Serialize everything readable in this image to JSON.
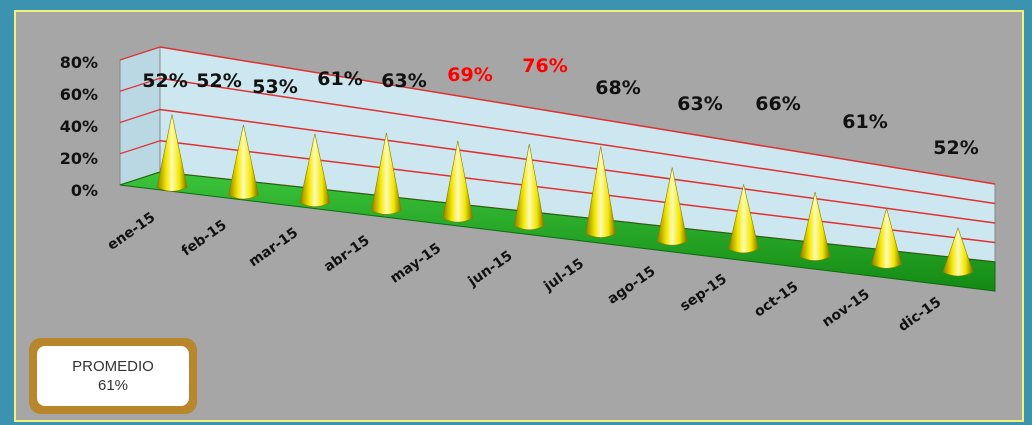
{
  "chart_data": {
    "type": "bar",
    "categories": [
      "ene-15",
      "feb-15",
      "mar-15",
      "abr-15",
      "may-15",
      "jun-15",
      "jul-15",
      "ago-15",
      "sep-15",
      "oct-15",
      "nov-15",
      "dic-15"
    ],
    "values": [
      52,
      52,
      53,
      61,
      63,
      69,
      76,
      68,
      63,
      66,
      61,
      52
    ],
    "data_labels": [
      "52%",
      "52%",
      "53%",
      "61%",
      "63%",
      "69%",
      "76%",
      "68%",
      "63%",
      "66%",
      "61%",
      "52%"
    ],
    "highlighted": [
      false,
      false,
      false,
      false,
      false,
      true,
      true,
      false,
      false,
      false,
      false,
      false
    ],
    "y_ticks": [
      "0%",
      "20%",
      "40%",
      "60%",
      "80%"
    ],
    "ylim": [
      0,
      80
    ],
    "grid": true,
    "colors": {
      "cone": "#f2e600",
      "floor": "#22b022",
      "wall": "#cde7f0",
      "gridline": "#e03030",
      "label": "#111111",
      "highlight": "#ff0000"
    }
  },
  "summary": {
    "title": "PROMEDIO",
    "value": "61%"
  }
}
